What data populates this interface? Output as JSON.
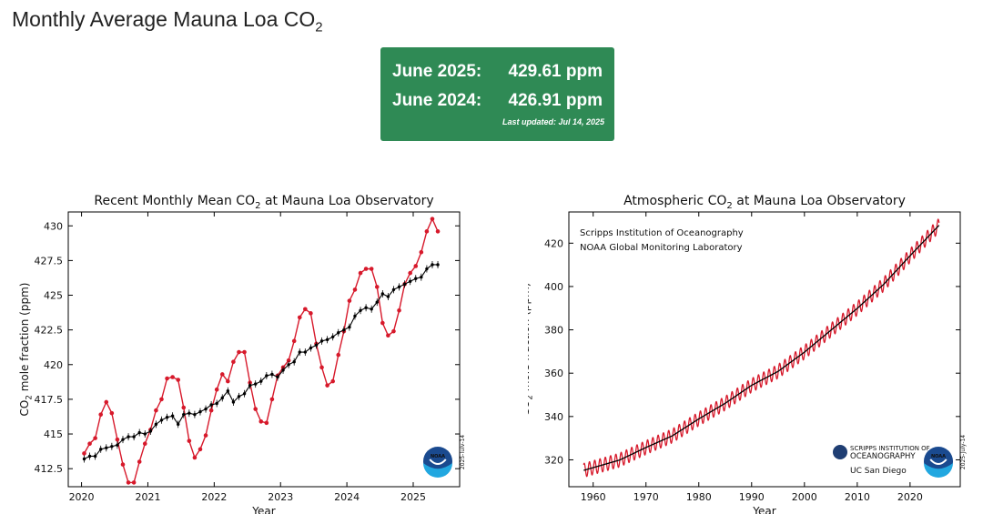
{
  "page": {
    "title_main": "Monthly Average Mauna Loa CO",
    "title_sub": "2"
  },
  "stats": {
    "row1_label": "June 2025:",
    "row1_value": "429.61 ppm",
    "row2_label": "June 2024:",
    "row2_value": "426.91 ppm",
    "updated": "Last updated: Jul 14, 2025",
    "bg_color": "#2f8a55"
  },
  "chart_data": [
    {
      "type": "line",
      "title_pre": "Recent Monthly Mean CO",
      "title_sub": "2",
      "title_post": " at Mauna Loa Observatory",
      "xlabel": "Year",
      "ylabel_pre": "CO",
      "ylabel_sub": "2",
      "ylabel_post": " mole fraction (ppm)",
      "xlim": [
        2019.8,
        2025.7
      ],
      "ylim": [
        411.2,
        431.0
      ],
      "xticks": [
        2020,
        2021,
        2022,
        2023,
        2024,
        2025
      ],
      "yticks": [
        412.5,
        415.0,
        417.5,
        420.0,
        422.5,
        425.0,
        427.5,
        430.0
      ],
      "watermark": "2025-July-14",
      "series": [
        {
          "color": "#d7192b",
          "style": "line-dots",
          "x_start": 2020.04,
          "x_step": 0.0833,
          "values": [
            413.6,
            414.3,
            414.7,
            416.4,
            417.3,
            416.5,
            414.6,
            412.8,
            411.5,
            411.5,
            413.0,
            414.3,
            415.3,
            416.7,
            417.5,
            419.0,
            419.1,
            418.9,
            416.9,
            414.5,
            413.3,
            413.9,
            414.9,
            416.7,
            418.2,
            419.3,
            418.8,
            420.2,
            420.9,
            420.9,
            418.7,
            416.8,
            415.9,
            415.8,
            417.5,
            419.2,
            419.8,
            420.3,
            421.7,
            423.4,
            424.0,
            423.7,
            421.5,
            419.8,
            418.5,
            418.8,
            420.7,
            422.4,
            424.6,
            425.4,
            426.6,
            426.9,
            426.9,
            425.6,
            423.0,
            422.1,
            422.4,
            423.9,
            425.8,
            426.6,
            427.1,
            428.1,
            429.6,
            430.5,
            429.6
          ]
        },
        {
          "color": "#000000",
          "style": "line-dots-errorbars",
          "x_start": 2020.04,
          "x_step": 0.0833,
          "values": [
            413.2,
            413.4,
            413.4,
            413.9,
            414.0,
            414.1,
            414.2,
            414.6,
            414.8,
            414.8,
            415.1,
            415.0,
            415.2,
            415.7,
            416.0,
            416.2,
            416.3,
            415.7,
            416.4,
            416.5,
            416.4,
            416.6,
            416.8,
            417.1,
            417.2,
            417.6,
            418.1,
            417.3,
            417.7,
            417.9,
            418.5,
            418.6,
            418.8,
            419.2,
            419.3,
            419.1,
            419.6,
            420.0,
            420.2,
            420.9,
            420.9,
            421.2,
            421.4,
            421.7,
            421.8,
            422.0,
            422.3,
            422.5,
            422.7,
            423.5,
            423.9,
            424.1,
            424.0,
            424.5,
            425.1,
            424.9,
            425.4,
            425.6,
            425.8,
            426.0,
            426.2,
            426.3,
            426.9,
            427.2,
            427.2
          ]
        }
      ]
    },
    {
      "type": "line",
      "title_pre": "Atmospheric CO",
      "title_sub": "2",
      "title_post": " at Mauna Loa Observatory",
      "xlabel": "Year",
      "ylabel_pre": "CO",
      "ylabel_sub": "2",
      "ylabel_post": " mole fraction (ppm)",
      "xlim": [
        1955.4,
        2029.5
      ],
      "ylim": [
        307.6,
        434.4
      ],
      "xticks": [
        1960,
        1970,
        1980,
        1990,
        2000,
        2010,
        2020
      ],
      "yticks": [
        320,
        340,
        360,
        380,
        400,
        420
      ],
      "annotation_line1": "Scripps Institution of Oceanography",
      "annotation_line2": "NOAA Global Monitoring Laboratory",
      "logo_text_1": "SCRIPPS INSTITUTION OF",
      "logo_text_2": "OCEANOGRAPHY",
      "logo_text_3": "UC San Diego",
      "noaa_logo_text": "NOAA",
      "watermark": "2025-July-14",
      "series": [
        {
          "color": "#d7192b",
          "style": "seasonal-line",
          "x_range": [
            1958.2,
            2025.5
          ],
          "trend_x": [
            1958,
            1965,
            1970,
            1975,
            1980,
            1985,
            1990,
            1995,
            2000,
            2005,
            2010,
            2015,
            2020,
            2025
          ],
          "trend_y": [
            315.0,
            319.9,
            325.7,
            331.1,
            338.9,
            346.1,
            354.4,
            360.8,
            369.7,
            379.8,
            389.9,
            401.0,
            414.2,
            427.0
          ],
          "seasonal_amplitude": 3.2
        },
        {
          "color": "#000000",
          "style": "trend-line",
          "x_range": [
            1958.2,
            2025.5
          ],
          "trend_x": [
            1958,
            1965,
            1970,
            1975,
            1980,
            1985,
            1990,
            1995,
            2000,
            2005,
            2010,
            2015,
            2020,
            2025
          ],
          "trend_y": [
            315.0,
            319.9,
            325.7,
            331.1,
            338.9,
            346.1,
            354.4,
            360.8,
            369.7,
            379.8,
            389.9,
            401.0,
            414.2,
            427.0
          ]
        }
      ]
    }
  ]
}
